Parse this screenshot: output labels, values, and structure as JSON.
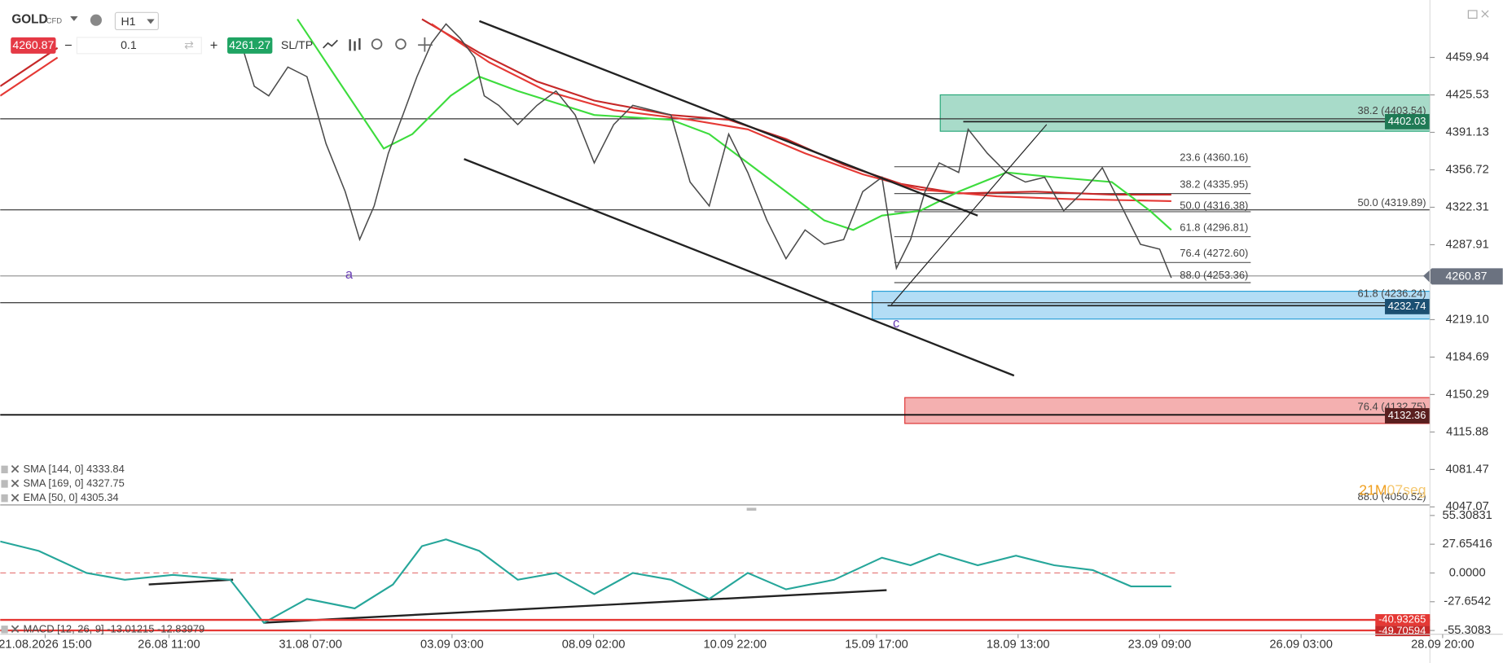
{
  "toolbar": {
    "symbol": "GOLD",
    "symbol_type": "CFD",
    "timeframe": "H1",
    "sell_price": "4260.87",
    "lot": "0.1",
    "buy_price": "4261.27",
    "sl_tp": "SL/TP"
  },
  "chart_data": [
    {
      "type": "line",
      "color": "#4a4a4a",
      "x": [
        60.0,
        64.1,
        68.2,
        73.6,
        79.0,
        84.4,
        89.8,
        93.9,
        98.0,
        102.0,
        106.1,
        110.1,
        114.2,
        118.3,
        122.3,
        126.4,
        129.1,
        133.2,
        138.6,
        144.0,
        149.4,
        154.8,
        160.2,
        165.7,
        171.1,
        176.5,
        181.9,
        187.3,
        192.7,
        198.2,
        203.6,
        209.0,
        214.4,
        219.8,
        225.2,
        230.7,
        236.1,
        241.5,
        245.6,
        249.6,
        253.7,
        257.7,
        263.2,
        265.9,
        271.3,
        276.7,
        282.1,
        287.5,
        292.9,
        298.4,
        303.8,
        309.2,
        314.6,
        320.0,
        323.3
      ],
      "values": [
        4477.5,
        4433.5,
        4424.7,
        4451.1,
        4442.3,
        4380.7,
        4336.7,
        4292.7,
        4323.5,
        4371.9,
        4407.1,
        4442.3,
        4473.1,
        4490.7,
        4477.5,
        4459.9,
        4424.7,
        4415.9,
        4398.3,
        4415.9,
        4429.1,
        4407.1,
        4363.1,
        4398.3,
        4415.9,
        4411.5,
        4407.1,
        4345.5,
        4323.5,
        4389.5,
        4354.3,
        4310.3,
        4275.1,
        4301.5,
        4288.3,
        4292.7,
        4336.7,
        4349.9,
        4266.3,
        4292.7,
        4336.7,
        4363.1,
        4354.3,
        4394.0,
        4371.9,
        4354.3,
        4345.5,
        4349.9,
        4319.1,
        4336.7,
        4358.7,
        4323.5,
        4288.3,
        4283.9,
        4257.5
      ],
      "series": [
        {
          "name": "SMA [144, 0] 4333.84",
          "color": "#c62828",
          "x": [
            -7.7,
            8.5,
            null,
            111.5,
            127.7,
            144.0,
            160.2,
            181.9,
            198.2,
            214.4,
            230.7,
            246.9,
            263.2,
            284.8,
            306.5,
            323.3
          ],
          "values": [
            4433.5,
            4468.7,
            null,
            4495.1,
            4464.3,
            4437.9,
            4420.3,
            4407.1,
            4402.7,
            4385.1,
            4361.4,
            4343.8,
            4335.0,
            4336.7,
            4334.0,
            4334.0
          ]
        },
        {
          "name": "SMA [169, 0] 4327.75",
          "color": "#e53935",
          "x": [
            -7.7,
            8.5,
            null,
            114.2,
            130.5,
            146.7,
            165.7,
            187.3,
            203.6,
            219.8,
            236.1,
            252.3,
            274.0,
            295.6,
            323.3
          ],
          "values": [
            4424.7,
            4459.9,
            null,
            4490.7,
            4455.5,
            4429.1,
            4411.5,
            4402.7,
            4393.9,
            4371.9,
            4352.6,
            4338.5,
            4332.4,
            4329.7,
            4328.0
          ]
        },
        {
          "name": "EMA [50, 0] 4305.34",
          "color": "#3ddc3d",
          "x": [
            76.3,
            87.1,
            100.7,
            108.8,
            119.6,
            127.7,
            138.6,
            160.2,
            181.9,
            192.7,
            203.6,
            214.4,
            225.2,
            233.4,
            241.5,
            252.3,
            263.2,
            276.7,
            290.2,
            306.5,
            317.3,
            323.3
          ],
          "values": [
            4495.1,
            4442.3,
            4376.3,
            4389.5,
            4424.7,
            4442.3,
            4429.1,
            4407.1,
            4402.7,
            4389.5,
            4363.1,
            4336.7,
            4310.3,
            4301.5,
            4314.7,
            4319.1,
            4336.7,
            4354.3,
            4349.9,
            4345.5,
            4319.1,
            4301.5
          ]
        }
      ],
      "xlim": [
        -7.7,
        417
      ],
      "xticks": [
        {
          "value": 5,
          "label": "21.08.2026 15:00"
        },
        {
          "value": 40,
          "label": "26.08 11:00"
        },
        {
          "value": 80,
          "label": "31.08 07:00"
        },
        {
          "value": 120,
          "label": "03.09 03:00"
        },
        {
          "value": 160,
          "label": "08.09 02:00"
        },
        {
          "value": 200,
          "label": "10.09 22:00"
        },
        {
          "value": 240,
          "label": "15.09 17:00"
        },
        {
          "value": 280,
          "label": "18.09 13:00"
        },
        {
          "value": 320,
          "label": "23.09 09:00"
        },
        {
          "value": 360,
          "label": "26.09 03:00"
        },
        {
          "value": 400,
          "label": "28.09 20:00"
        }
      ],
      "ylim": [
        4048.9,
        4512.7
      ],
      "yticks": [
        4459.94,
        4425.53,
        4391.13,
        4356.72,
        4322.31,
        4287.91,
        {
          "value": 4219.1,
          "label": "4219.10"
        },
        4184.69,
        4150.29,
        4115.88,
        4081.47,
        4047.07
      ]
    },
    {
      "type": "line",
      "series": [
        {
          "name": "MACD [12, 26, 9] -13.01215 -12.83979",
          "color": "#26a69a",
          "x": [
            -7.7,
            3.2,
            16.7,
            27.5,
            41.1,
            57.3,
            66.8,
            79.0,
            92.5,
            103.3,
            111.5,
            118.3,
            127.7,
            138.6,
            149.4,
            160.2,
            171.1,
            181.9,
            192.7,
            203.6,
            214.4,
            228.0,
            241.5,
            249.6,
            257.7,
            268.6,
            279.4,
            290.2,
            301.1,
            311.9,
            323.3
          ],
          "values": [
            30.4,
            21.2,
            0,
            -6.5,
            -1.8,
            -6.5,
            -47.9,
            -24.9,
            -34.1,
            -11.1,
            25.8,
            32.3,
            21.2,
            -6.5,
            0,
            -20.3,
            0,
            -6.5,
            -24.9,
            0,
            -15.7,
            -6.5,
            14.7,
            7.4,
            18.4,
            7.4,
            16.6,
            7.4,
            2.8,
            -12.9,
            -12.9
          ]
        }
      ],
      "ylim": [
        -57.1,
        62.7
      ],
      "yticks": [
        55.30831,
        27.65416,
        {
          "value": 0,
          "label": "0.0000"
        },
        -27.6542,
        -55.3083
      ]
    }
  ],
  "price_tags": [
    "4402.03",
    "4260.87",
    "4232.74",
    "4132.36"
  ],
  "macd_tags": [
    "-40.93265",
    "-49.70594"
  ],
  "fib_labels": [
    "23.6 (4360.16)",
    "38.2 (4335.95)",
    "50.0 (4316.38)",
    "61.8 (4296.81)",
    "76.4 (4272.60)",
    "88.0 (4253.36)"
  ],
  "fib_right_labels": [
    "38.2 (4403.54)",
    "50.0 (4319.89)",
    "61.8 (4236.24)",
    "76.4 (4132.75)",
    "88.0 (4050.52)"
  ],
  "wave_labels": [
    "a",
    "c"
  ],
  "timer": {
    "minutes": "21M",
    "seconds": "07seg"
  }
}
